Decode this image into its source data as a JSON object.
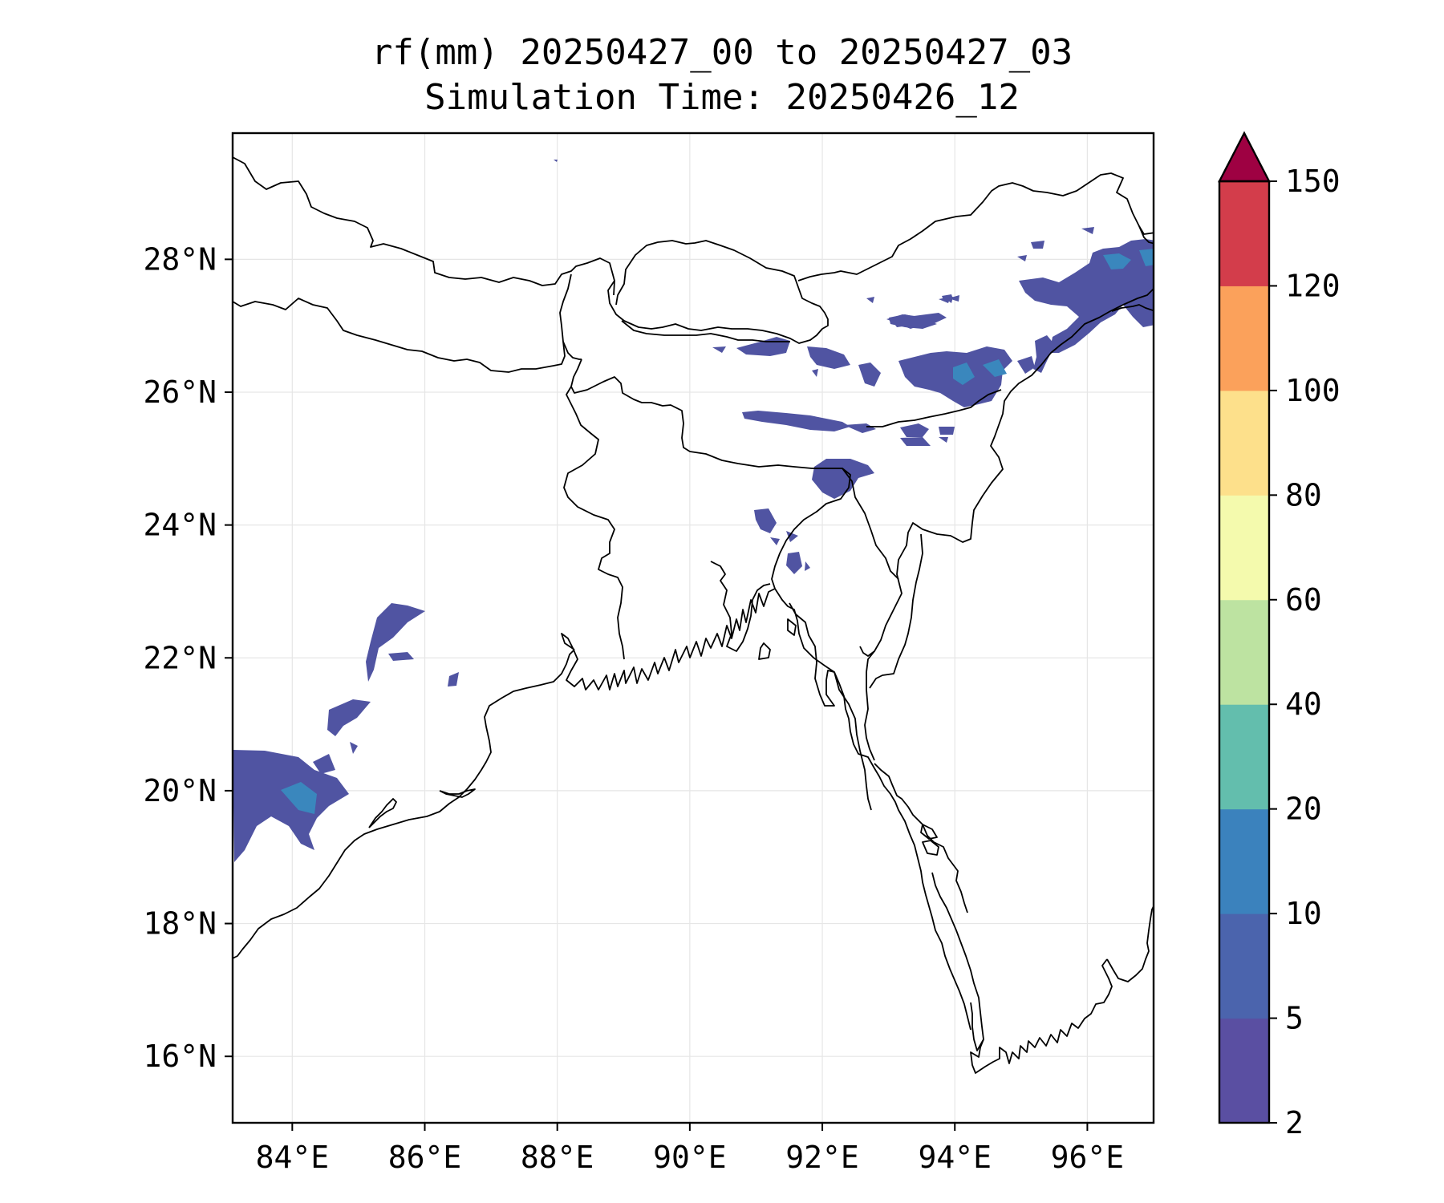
{
  "title": {
    "line1": "rf(mm) 20250427_00 to 20250427_03",
    "line2": "Simulation Time: 20250426_12"
  },
  "map": {
    "lon_range": [
      83.1,
      97.0
    ],
    "lat_range": [
      15.0,
      29.9
    ],
    "xticks": [
      {
        "value": 84,
        "label": "84°E"
      },
      {
        "value": 86,
        "label": "86°E"
      },
      {
        "value": 88,
        "label": "88°E"
      },
      {
        "value": 90,
        "label": "90°E"
      },
      {
        "value": 92,
        "label": "92°E"
      },
      {
        "value": 94,
        "label": "94°E"
      },
      {
        "value": 96,
        "label": "96°E"
      }
    ],
    "yticks": [
      {
        "value": 16,
        "label": "16°N"
      },
      {
        "value": 18,
        "label": "18°N"
      },
      {
        "value": 20,
        "label": "20°N"
      },
      {
        "value": 22,
        "label": "22°N"
      },
      {
        "value": 24,
        "label": "24°N"
      },
      {
        "value": 26,
        "label": "26°N"
      },
      {
        "value": 28,
        "label": "28°N"
      }
    ],
    "grid": true,
    "variable": "rf(mm)",
    "dominant_rain_color": "#5054a2",
    "accent_rain_color": "#3a87bd",
    "coastline_color": "#000000"
  },
  "colorbar": {
    "levels": [
      "2",
      "5",
      "10",
      "20",
      "40",
      "60",
      "80",
      "100",
      "120",
      "150"
    ],
    "colors": [
      "#5a4fa2",
      "#4b64ad",
      "#3b82bd",
      "#63bead",
      "#bde3a1",
      "#f4faad",
      "#fde08b",
      "#fba15b",
      "#d33d4b"
    ],
    "extend": "max",
    "extend_color": "#9e0142"
  }
}
